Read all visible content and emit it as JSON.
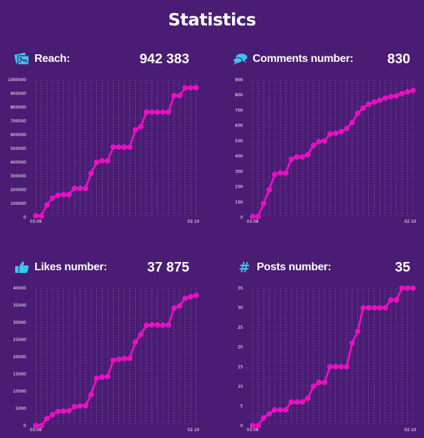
{
  "page": {
    "title": "Statistics"
  },
  "colors": {
    "background": "#4a1c73",
    "line": "#e810c2",
    "grid": "#8a66b0",
    "icon": "#3fc2ee",
    "text": "#ffffff"
  },
  "panels": [
    {
      "label": "Reach:",
      "value": "942 383",
      "icon": "image-icon"
    },
    {
      "label": "Comments number:",
      "value": "830",
      "icon": "comments-icon"
    },
    {
      "label": "Likes number:",
      "value": "37 875",
      "icon": "thumbs-up-icon"
    },
    {
      "label": "Posts number:",
      "value": "35",
      "icon": "hashtag-icon"
    }
  ],
  "chart_data": [
    {
      "type": "line",
      "x_tick_labels": [
        "03.09",
        "02.10"
      ],
      "ylim": [
        0,
        1000000
      ],
      "yticks": [
        0,
        100000,
        200000,
        300000,
        400000,
        500000,
        600000,
        700000,
        800000,
        900000,
        1000000
      ],
      "grid": true,
      "values": [
        10000,
        10000,
        90000,
        140000,
        160000,
        165000,
        165000,
        210000,
        210000,
        210000,
        320000,
        400000,
        410000,
        410000,
        510000,
        510000,
        510000,
        510000,
        635000,
        660000,
        765000,
        765000,
        765000,
        765000,
        765000,
        885000,
        885000,
        940000,
        942000,
        942383
      ]
    },
    {
      "type": "line",
      "x_tick_labels": [
        "03.09",
        "02.10"
      ],
      "ylim": [
        0,
        900
      ],
      "yticks": [
        0,
        100,
        200,
        300,
        400,
        500,
        600,
        700,
        800,
        900
      ],
      "grid": true,
      "values": [
        5,
        5,
        90,
        180,
        280,
        290,
        290,
        380,
        395,
        395,
        410,
        470,
        495,
        500,
        545,
        550,
        560,
        580,
        620,
        680,
        715,
        740,
        755,
        765,
        780,
        790,
        795,
        810,
        820,
        830
      ]
    },
    {
      "type": "line",
      "x_tick_labels": [
        "03.09",
        "02.10"
      ],
      "ylim": [
        0,
        40000
      ],
      "yticks": [
        0,
        5000,
        10000,
        15000,
        20000,
        25000,
        30000,
        35000,
        40000
      ],
      "grid": true,
      "values": [
        0,
        0,
        2000,
        3200,
        4100,
        4200,
        4300,
        5500,
        5700,
        5800,
        9000,
        13800,
        14100,
        14300,
        19000,
        19300,
        19500,
        19600,
        24300,
        26500,
        29200,
        29300,
        29300,
        29200,
        29300,
        34200,
        34800,
        37000,
        37500,
        37875
      ]
    },
    {
      "type": "line",
      "x_tick_labels": [
        "03.09",
        "02.10"
      ],
      "ylim": [
        0,
        35
      ],
      "yticks": [
        0,
        5,
        10,
        15,
        20,
        25,
        30,
        35
      ],
      "grid": true,
      "values": [
        0,
        0,
        2,
        3,
        4,
        4,
        4,
        6,
        6,
        6,
        7,
        10,
        11,
        11,
        15,
        15,
        15,
        15,
        21,
        24,
        30,
        30,
        30,
        30,
        30,
        32,
        32,
        35,
        35,
        35
      ]
    }
  ]
}
